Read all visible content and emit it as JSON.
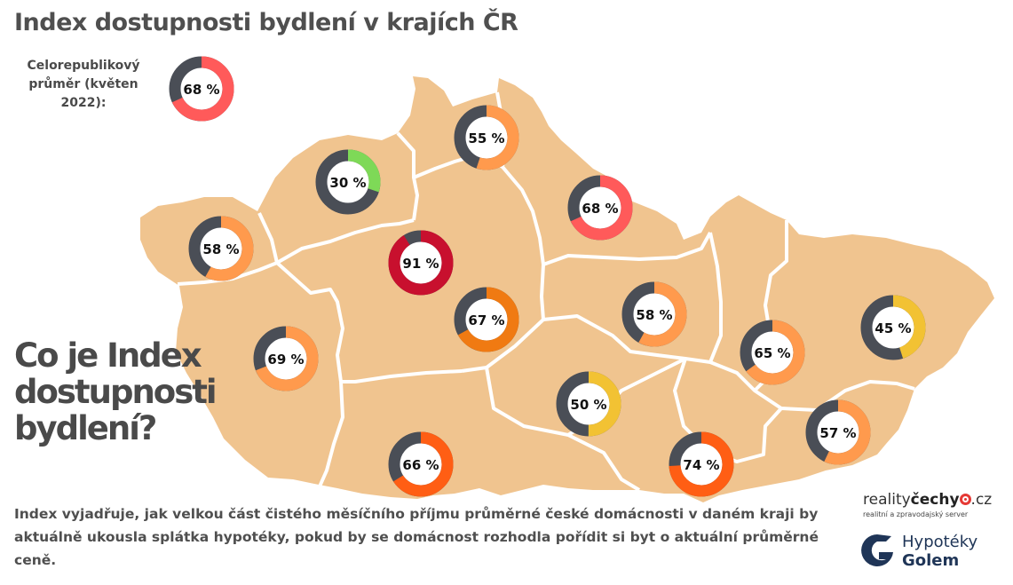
{
  "title": "Index dostupnosti bydlení v krajích ČR",
  "national": {
    "label": "Celorepublikový průměr (květen 2022):",
    "value": 68,
    "value_text": "68 %",
    "color": "#ff5a5a"
  },
  "regions": [
    {
      "value": 55,
      "label": "55 %",
      "color": "#ff9a4d"
    },
    {
      "value": 30,
      "label": "30 %",
      "color": "#7ed957"
    },
    {
      "value": 68,
      "label": "68 %",
      "color": "#ff5a5a"
    },
    {
      "value": 58,
      "label": "58 %",
      "color": "#ff9a4d"
    },
    {
      "value": 91,
      "label": "91 %",
      "color": "#c8102e"
    },
    {
      "value": 67,
      "label": "67 %",
      "color": "#f07a12"
    },
    {
      "value": 58,
      "label": "58 %",
      "color": "#ff9a4d"
    },
    {
      "value": 69,
      "label": "69 %",
      "color": "#ff9a4d"
    },
    {
      "value": 65,
      "label": "65 %",
      "color": "#ff9a4d"
    },
    {
      "value": 45,
      "label": "45 %",
      "color": "#f2c233"
    },
    {
      "value": 50,
      "label": "50 %",
      "color": "#f2c233"
    },
    {
      "value": 66,
      "label": "66 %",
      "color": "#ff5e14"
    },
    {
      "value": 74,
      "label": "74 %",
      "color": "#ff5e14"
    },
    {
      "value": 57,
      "label": "57 %",
      "color": "#ff9a4d"
    }
  ],
  "colors": {
    "map_fill": "#f0c48f",
    "border": "#ffffff",
    "track": "#4a4e56",
    "text_dark": "#4f4f4f"
  },
  "faq_heading": "Co je Index dostupnosti bydlení?",
  "description": "Index vyjadřuje, jak velkou část čistého měsíčního příjmu průměrné české domácnosti v daném kraji by aktuálně ukousla splátka hypotéky, pokud by se domácnost rozhodla pořídit si byt o aktuální průměrné ceně.",
  "logos": {
    "realitycechy": {
      "name_a": "reality",
      "name_b": "čechy",
      "suffix": ".cz",
      "tagline": "realitní a zpravodajský server"
    },
    "golem": {
      "line1": "Hypotéky",
      "line2": "Golem"
    }
  }
}
